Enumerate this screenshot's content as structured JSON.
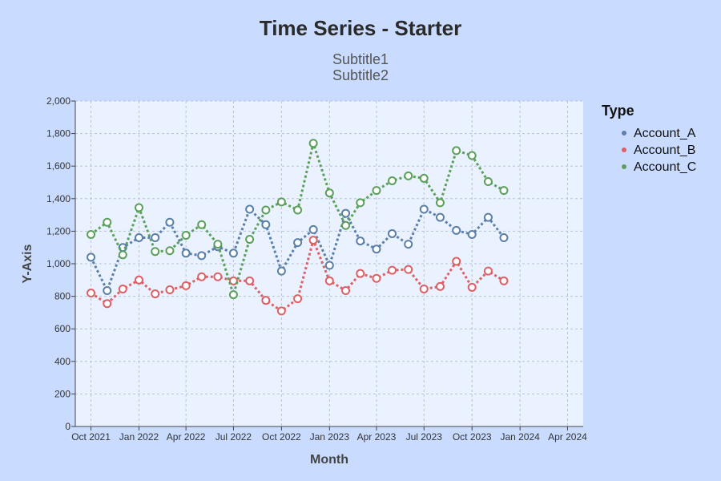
{
  "chart_data": {
    "type": "line",
    "title": "Time Series - Starter",
    "subtitle": [
      "Subtitle1",
      "Subtitle2"
    ],
    "xlabel": "Month",
    "ylabel": "Y-Axis",
    "ylim": [
      0,
      2000
    ],
    "yticks": [
      0,
      200,
      400,
      600,
      800,
      1000,
      1200,
      1400,
      1600,
      1800,
      2000
    ],
    "ytick_labels": [
      "0",
      "200",
      "400",
      "600",
      "800",
      "1,000",
      "1,200",
      "1,400",
      "1,600",
      "1,800",
      "2,000"
    ],
    "xlim": [
      "2021-09-01",
      "2024-05-01"
    ],
    "xticks": [
      "2021-10-01",
      "2022-01-01",
      "2022-04-01",
      "2022-07-01",
      "2022-10-01",
      "2023-01-01",
      "2023-04-01",
      "2023-07-01",
      "2023-10-01",
      "2024-01-01",
      "2024-04-01"
    ],
    "xtick_labels": [
      "Oct 2021",
      "Jan 2022",
      "Apr 2022",
      "Jul 2022",
      "Oct 2022",
      "Jan 2023",
      "Apr 2023",
      "Jul 2023",
      "Oct 2023",
      "Jan 2024",
      "Apr 2024"
    ],
    "grid": true,
    "legend": {
      "title": "Type",
      "position": "right"
    },
    "x": [
      "2021-10-01",
      "2021-11-01",
      "2021-12-01",
      "2022-01-01",
      "2022-02-01",
      "2022-03-01",
      "2022-04-01",
      "2022-05-01",
      "2022-06-01",
      "2022-07-01",
      "2022-08-01",
      "2022-09-01",
      "2022-10-01",
      "2022-11-01",
      "2022-12-01",
      "2023-01-01",
      "2023-02-01",
      "2023-03-01",
      "2023-04-01",
      "2023-05-01",
      "2023-06-01",
      "2023-07-01",
      "2023-08-01",
      "2023-09-01",
      "2023-10-01",
      "2023-11-01",
      "2023-12-01"
    ],
    "series": [
      {
        "name": "Account_A",
        "color": "#5a7fa8",
        "values": [
          1040,
          835,
          1100,
          1160,
          1160,
          1255,
          1065,
          1050,
          1105,
          1065,
          1335,
          1240,
          955,
          1130,
          1210,
          990,
          1310,
          1140,
          1090,
          1185,
          1120,
          1335,
          1285,
          1205,
          1180,
          1285,
          1160
        ]
      },
      {
        "name": "Account_B",
        "color": "#dd6066",
        "values": [
          820,
          755,
          845,
          900,
          815,
          840,
          865,
          920,
          920,
          895,
          895,
          775,
          710,
          785,
          1145,
          895,
          835,
          940,
          910,
          960,
          965,
          845,
          860,
          1015,
          855,
          955,
          895
        ]
      },
      {
        "name": "Account_C",
        "color": "#5ba05a",
        "values": [
          1180,
          1255,
          1055,
          1345,
          1075,
          1080,
          1175,
          1240,
          1120,
          810,
          1150,
          1330,
          1380,
          1330,
          1740,
          1435,
          1235,
          1375,
          1450,
          1510,
          1540,
          1525,
          1375,
          1695,
          1665,
          1505,
          1450
        ]
      }
    ]
  }
}
